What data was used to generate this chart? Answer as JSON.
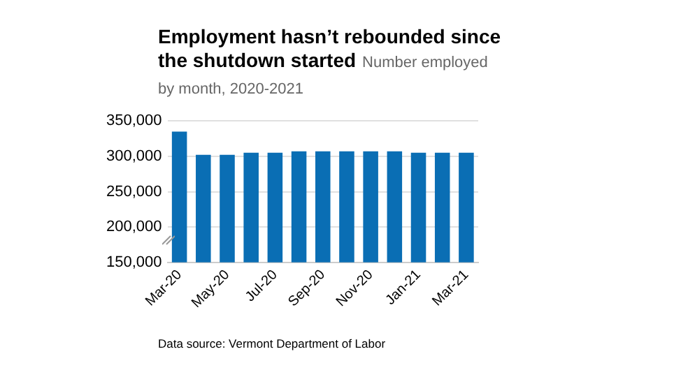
{
  "chart_data": {
    "type": "bar",
    "title": "Employment hasn’t rebounded since the shutdown started",
    "subtitle": "Number employed by month, 2020-2021",
    "categories": [
      "Mar-20",
      null,
      "May-20",
      null,
      "Jul-20",
      null,
      "Sep-20",
      null,
      "Nov-20",
      null,
      "Jan-21",
      null,
      "Mar-21"
    ],
    "values": [
      335000,
      302000,
      302000,
      305000,
      305000,
      307000,
      307000,
      307000,
      307000,
      307000,
      305000,
      305000,
      305000
    ],
    "color": "#0a6eb4",
    "ylim": [
      150000,
      350000
    ],
    "yticks": [
      {
        "value": 150000,
        "label": "150,000"
      },
      {
        "value": 200000,
        "label": "200,000"
      },
      {
        "value": 250000,
        "label": "250,000"
      },
      {
        "value": 300000,
        "label": "300,000"
      },
      {
        "value": 350000,
        "label": "350,000"
      }
    ],
    "grid": "y",
    "annotations": [
      "Data source: Vermont Department of Labor"
    ]
  }
}
